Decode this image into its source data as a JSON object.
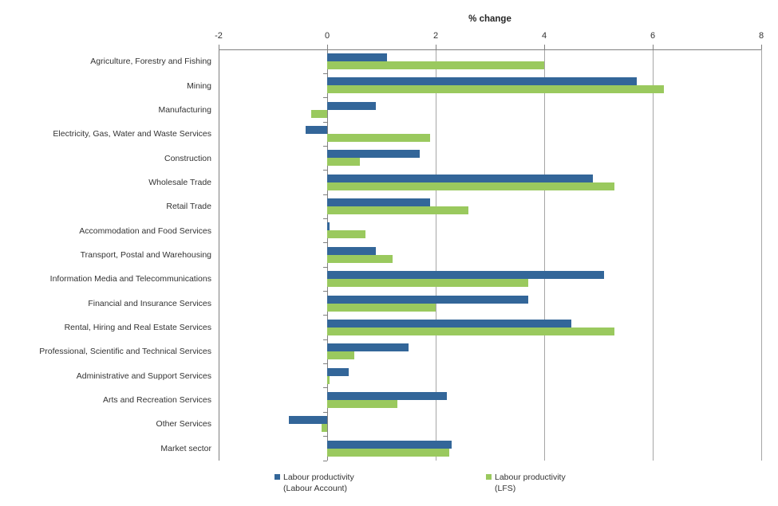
{
  "chart_data": {
    "type": "bar",
    "orientation": "horizontal",
    "title": "% change",
    "xlim": [
      -2,
      8
    ],
    "x_ticks": [
      -2,
      0,
      2,
      4,
      6,
      8
    ],
    "grid": "vertical-major-gridlines",
    "legend_position": "bottom",
    "categories": [
      "Agriculture, Forestry and Fishing",
      "Mining",
      "Manufacturing",
      "Electricity, Gas, Water and Waste Services",
      "Construction",
      "Wholesale Trade",
      "Retail Trade",
      "Accommodation and Food Services",
      "Transport, Postal and Warehousing",
      "Information Media and Telecommunications",
      "Financial and Insurance Services",
      "Rental, Hiring and Real Estate Services",
      "Professional, Scientific and Technical Services",
      "Administrative and Support Services",
      "Arts and Recreation Services",
      "Other Services",
      "Market sector"
    ],
    "series": [
      {
        "key": "labour-account",
        "name": "Labour productivity (Labour Account)",
        "legend_lines": [
          "Labour productivity",
          "(Labour Account)"
        ],
        "color": "#336699",
        "values": [
          1.1,
          5.7,
          0.9,
          -0.4,
          1.7,
          4.9,
          1.9,
          0.05,
          0.9,
          5.1,
          3.7,
          4.5,
          1.5,
          0.4,
          2.2,
          -0.7,
          2.3
        ]
      },
      {
        "key": "lfs",
        "name": "Labour productivity (LFS)",
        "legend_lines": [
          "Labour productivity",
          "(LFS)"
        ],
        "color": "#9AC95E",
        "values": [
          4.0,
          6.2,
          -0.3,
          1.9,
          0.6,
          5.3,
          2.6,
          0.7,
          1.2,
          3.7,
          2.0,
          5.3,
          0.5,
          0.05,
          1.3,
          -0.1,
          2.25
        ]
      }
    ],
    "style": {
      "axis_color": "#808080",
      "grid_color": "#A6A6A6",
      "text_color": "#333333"
    }
  }
}
